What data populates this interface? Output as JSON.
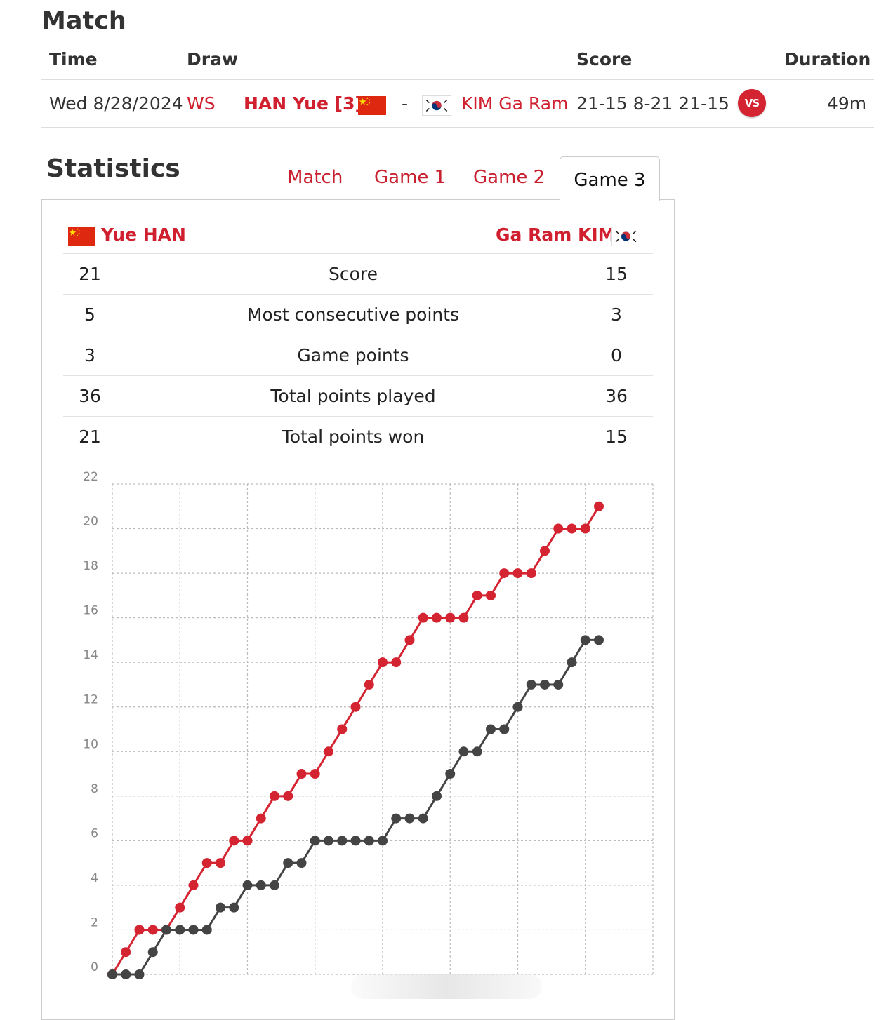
{
  "match": {
    "title": "Match",
    "headers": {
      "time": "Time",
      "draw": "Draw",
      "score": "Score",
      "duration": "Duration"
    },
    "row": {
      "time": "Wed 8/28/2024",
      "draw": "WS",
      "player1": "HAN Yue [3]",
      "separator": "-",
      "player2": "KIM Ga Ram",
      "score": "21-15 8-21 21-15",
      "duration": "49m",
      "vs_icon_label": "VS"
    }
  },
  "statistics": {
    "title": "Statistics",
    "tabs": [
      "Match",
      "Game 1",
      "Game 2",
      "Game 3"
    ],
    "active_tab": "Game 3",
    "player1": "Yue HAN",
    "player2": "Ga Ram KIM",
    "rows": [
      {
        "left": "21",
        "label": "Score",
        "right": "15"
      },
      {
        "left": "5",
        "label": "Most consecutive points",
        "right": "3"
      },
      {
        "left": "3",
        "label": "Game points",
        "right": "0"
      },
      {
        "left": "36",
        "label": "Total points played",
        "right": "36"
      },
      {
        "left": "21",
        "label": "Total points won",
        "right": "15"
      }
    ]
  },
  "colors": {
    "accent": "#d0202f",
    "player1_line": "#d42331",
    "player2_line": "#444444"
  },
  "chart_data": {
    "type": "line",
    "title": "",
    "xlabel": "",
    "ylabel": "",
    "ylim": [
      0,
      22
    ],
    "yticks": [
      0,
      2,
      4,
      6,
      8,
      10,
      12,
      14,
      16,
      18,
      20,
      22
    ],
    "x": [
      0,
      1,
      2,
      3,
      4,
      5,
      6,
      7,
      8,
      9,
      10,
      11,
      12,
      13,
      14,
      15,
      16,
      17,
      18,
      19,
      20,
      21,
      22,
      23,
      24,
      25,
      26,
      27,
      28,
      29,
      30,
      31,
      32,
      33,
      34,
      35,
      36
    ],
    "series": [
      {
        "name": "Yue HAN",
        "color": "#d42331",
        "values": [
          0,
          1,
          2,
          2,
          2,
          3,
          4,
          5,
          5,
          6,
          6,
          7,
          8,
          8,
          9,
          9,
          10,
          11,
          12,
          13,
          14,
          14,
          15,
          16,
          16,
          16,
          16,
          17,
          17,
          18,
          18,
          18,
          19,
          20,
          20,
          20,
          21
        ]
      },
      {
        "name": "Ga Ram KIM",
        "color": "#444444",
        "values": [
          0,
          0,
          0,
          1,
          2,
          2,
          2,
          2,
          3,
          3,
          4,
          4,
          4,
          5,
          5,
          6,
          6,
          6,
          6,
          6,
          6,
          7,
          7,
          7,
          8,
          9,
          10,
          10,
          11,
          11,
          12,
          13,
          13,
          13,
          14,
          15,
          15
        ]
      }
    ]
  }
}
